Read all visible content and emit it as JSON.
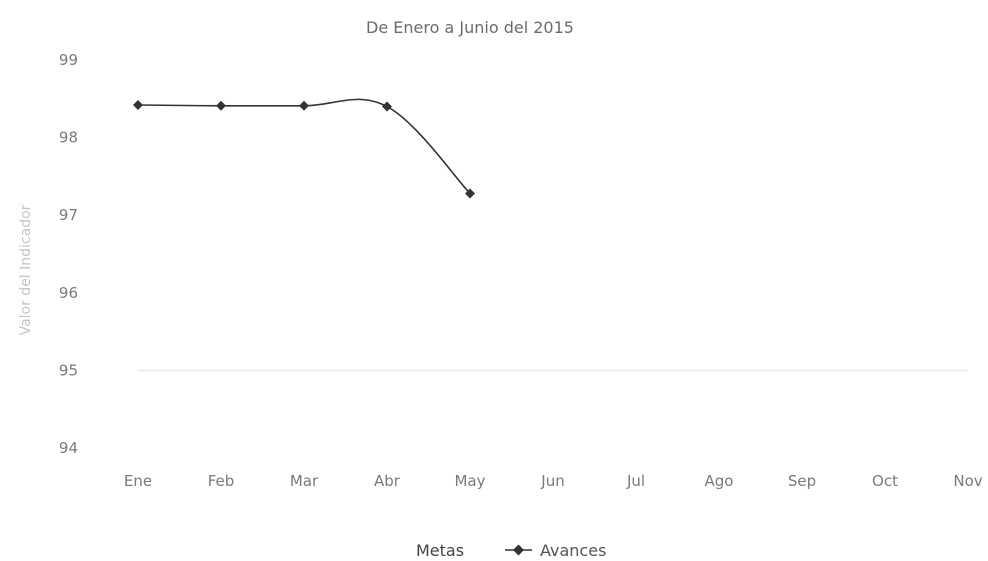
{
  "chart_data": {
    "type": "line",
    "title": "De Enero a Junio del 2015",
    "xlabel": "",
    "ylabel": "Valor del Indicador",
    "ylim": [
      94,
      99
    ],
    "y_ticks": [
      "94",
      "95",
      "96",
      "97",
      "98",
      "99"
    ],
    "categories": [
      "Ene",
      "Feb",
      "Mar",
      "Abr",
      "May",
      "Jun",
      "Jul",
      "Ago",
      "Sep",
      "Oct",
      "Nov"
    ],
    "series": [
      {
        "name": "Metas",
        "values": [
          95,
          95,
          95,
          95,
          95,
          95,
          95,
          95,
          95,
          95,
          95
        ],
        "color": "#f2f2f2",
        "marker": "none"
      },
      {
        "name": "Avances",
        "values": [
          98.42,
          98.41,
          98.41,
          98.4,
          97.28,
          null,
          null,
          null,
          null,
          null,
          null
        ],
        "color": "#333333",
        "marker": "diamond",
        "smooth": true
      }
    ],
    "grid": false,
    "legend_position": "bottom"
  }
}
